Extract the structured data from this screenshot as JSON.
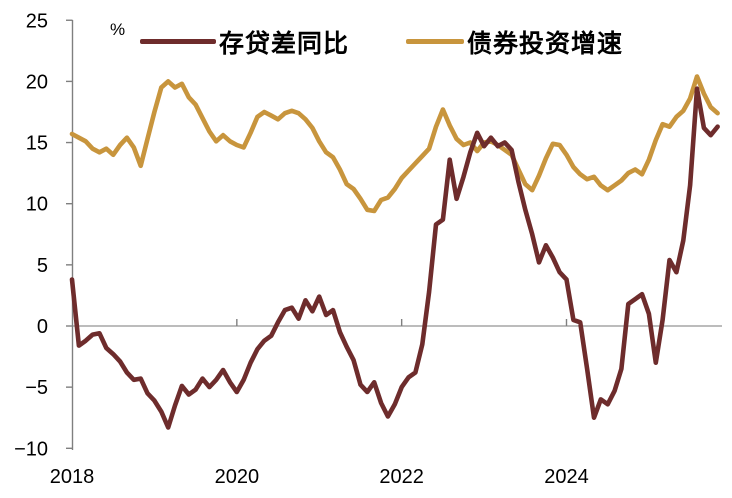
{
  "chart_data": {
    "type": "line",
    "title": "",
    "unit_label": "%",
    "x_start": "2018-01",
    "x_frequency": "monthly",
    "x_tick_labels": [
      "2018",
      "2020",
      "2022",
      "2024"
    ],
    "x_tick_positions_months": [
      0,
      24,
      48,
      72
    ],
    "ylim": [
      -10,
      25
    ],
    "y_ticks": [
      25,
      20,
      15,
      10,
      5,
      0,
      -5,
      -10
    ],
    "zero_gridline": true,
    "legend_position": "top-center",
    "axis_color": "#7f7f7f",
    "gridline_color": "#a6a6a6",
    "series": [
      {
        "id": "deposit-loan-gap-yoy",
        "name": "存贷差同比",
        "color": "#6E2C2C",
        "values": [
          3.8,
          -1.6,
          -1.2,
          -0.7,
          -0.6,
          -1.8,
          -2.3,
          -2.9,
          -3.8,
          -4.4,
          -4.3,
          -5.5,
          -6.1,
          -7.0,
          -8.3,
          -6.5,
          -4.9,
          -5.6,
          -5.2,
          -4.3,
          -5.0,
          -4.4,
          -3.6,
          -4.6,
          -5.4,
          -4.4,
          -3.0,
          -1.9,
          -1.2,
          -0.8,
          0.3,
          1.3,
          1.5,
          0.6,
          2.1,
          1.2,
          2.4,
          0.9,
          1.3,
          -0.5,
          -1.7,
          -2.8,
          -4.8,
          -5.4,
          -4.6,
          -6.3,
          -7.4,
          -6.4,
          -5.0,
          -4.2,
          -3.8,
          -1.5,
          2.8,
          8.3,
          8.7,
          13.6,
          10.4,
          12.2,
          14.2,
          15.8,
          14.7,
          15.4,
          14.7,
          15.0,
          14.4,
          11.8,
          9.5,
          7.5,
          5.2,
          6.6,
          5.6,
          4.4,
          3.8,
          0.5,
          0.3,
          -3.5,
          -7.5,
          -6.0,
          -6.4,
          -5.3,
          -3.5,
          1.8,
          2.2,
          2.6,
          1.0,
          -3.0,
          0.5,
          5.4,
          4.4,
          7.0,
          11.5,
          19.4,
          16.2,
          15.6,
          16.3
        ]
      },
      {
        "id": "bond-investment-growth",
        "name": "债券投资增速",
        "color": "#C8953D",
        "values": [
          15.7,
          15.4,
          15.1,
          14.5,
          14.2,
          14.5,
          14.0,
          14.8,
          15.4,
          14.6,
          13.1,
          15.3,
          17.5,
          19.5,
          20.0,
          19.5,
          19.8,
          18.7,
          18.1,
          17.0,
          15.9,
          15.1,
          15.6,
          15.1,
          14.8,
          14.6,
          15.8,
          17.1,
          17.5,
          17.2,
          16.9,
          17.4,
          17.6,
          17.4,
          16.9,
          16.2,
          15.1,
          14.2,
          13.8,
          12.8,
          11.6,
          11.2,
          10.4,
          9.5,
          9.4,
          10.3,
          10.5,
          11.2,
          12.1,
          12.7,
          13.3,
          13.9,
          14.5,
          16.3,
          17.7,
          16.4,
          15.3,
          14.8,
          15.0,
          14.3,
          15.0,
          15.1,
          14.8,
          14.4,
          14.0,
          12.8,
          11.6,
          11.1,
          12.3,
          13.7,
          14.9,
          14.8,
          14.0,
          13.0,
          12.4,
          12.0,
          12.2,
          11.5,
          11.1,
          11.5,
          11.9,
          12.5,
          12.8,
          12.4,
          13.6,
          15.2,
          16.5,
          16.3,
          17.1,
          17.6,
          18.6,
          20.4,
          19.0,
          17.9,
          17.4
        ]
      }
    ]
  }
}
